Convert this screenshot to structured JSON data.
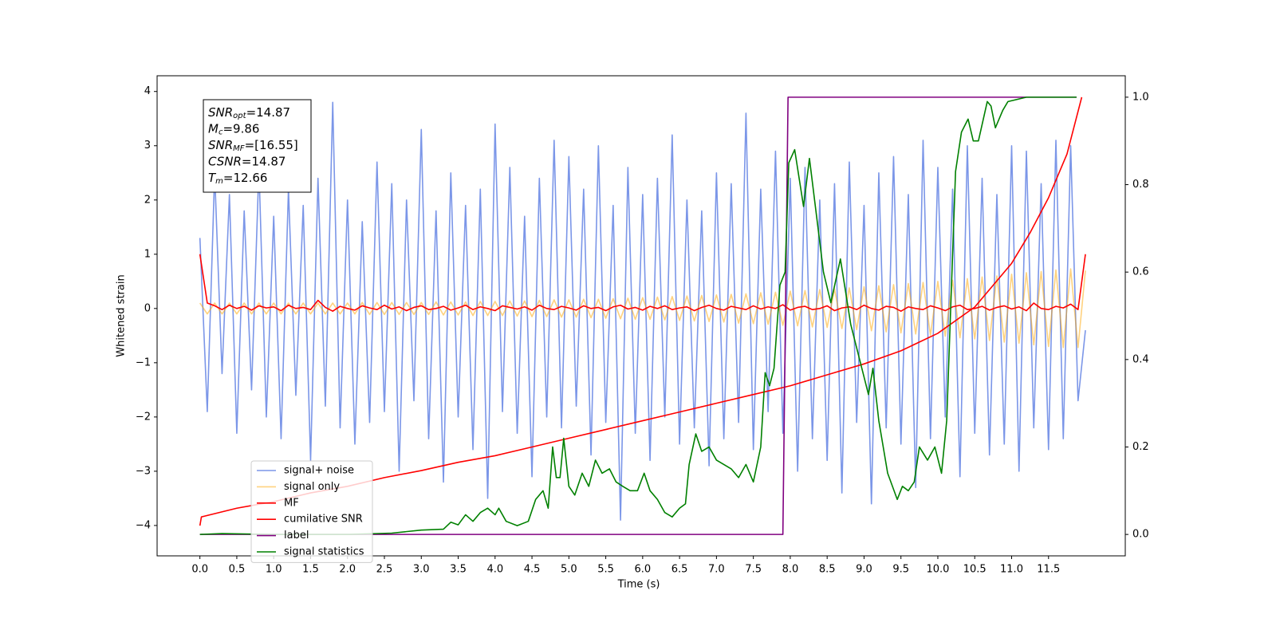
{
  "chart_data": {
    "type": "line",
    "xlabel": "Time (s)",
    "ylabel": "Whitened strain",
    "xlim": [
      -0.58,
      12.54
    ],
    "ylim": [
      -4.56,
      4.29
    ],
    "y2lim": [
      -0.049,
      1.049
    ],
    "xticks": [
      {
        "value": 0,
        "label": "0.0"
      },
      0.5,
      {
        "value": 1,
        "label": "1.0"
      },
      1.5,
      {
        "value": 2,
        "label": "2.0"
      },
      2.5,
      {
        "value": 3,
        "label": "3.0"
      },
      3.5,
      {
        "value": 4,
        "label": "4.0"
      },
      4.5,
      {
        "value": 5,
        "label": "5.0"
      },
      5.5,
      {
        "value": 6,
        "label": "6.0"
      },
      6.5,
      {
        "value": 7,
        "label": "7.0"
      },
      7.5,
      {
        "value": 8,
        "label": "8.0"
      },
      8.5,
      {
        "value": 9,
        "label": "9.0"
      },
      9.5,
      {
        "value": 10,
        "label": "10.0"
      },
      10.5,
      {
        "value": 11,
        "label": "11.0"
      },
      11.5
    ],
    "yticks": [
      {
        "value": -4,
        "label": "−4"
      },
      {
        "value": -3,
        "label": "−3"
      },
      {
        "value": -2,
        "label": "−2"
      },
      {
        "value": -1,
        "label": "−1"
      },
      0,
      1,
      2,
      3,
      4
    ],
    "y2ticks": [
      {
        "value": 0,
        "label": "0.0"
      },
      0.2,
      0.4,
      0.6,
      0.8,
      {
        "value": 1,
        "label": "1.0"
      }
    ],
    "legend": "lower left",
    "annotation": [
      {
        "text": "SNR",
        "sub": "opt",
        "rest": "=14.87"
      },
      {
        "text": "M",
        "sub": "c",
        "rest": "=9.86"
      },
      {
        "text": "SNR",
        "sub": "MF",
        "rest": "=[16.55]"
      },
      {
        "text": "CSNR",
        "sub": "",
        "rest": "=14.87"
      },
      {
        "text": "T",
        "sub": "m",
        "rest": "=12.66"
      }
    ],
    "x": [
      0,
      0.1,
      0.2,
      0.3,
      0.4,
      0.5,
      0.6,
      0.7,
      0.8,
      0.9,
      1,
      1.1,
      1.2,
      1.3,
      1.4,
      1.5,
      1.6,
      1.7,
      1.8,
      1.9,
      2,
      2.1,
      2.2,
      2.3,
      2.4,
      2.5,
      2.6,
      2.7,
      2.8,
      2.9,
      3,
      3.1,
      3.2,
      3.3,
      3.4,
      3.5,
      3.6,
      3.7,
      3.8,
      3.9,
      4,
      4.1,
      4.2,
      4.3,
      4.4,
      4.5,
      4.6,
      4.7,
      4.8,
      4.9,
      5,
      5.1,
      5.2,
      5.3,
      5.4,
      5.5,
      5.6,
      5.7,
      5.8,
      5.9,
      6,
      6.1,
      6.2,
      6.3,
      6.4,
      6.5,
      6.6,
      6.7,
      6.8,
      6.9,
      7,
      7.1,
      7.2,
      7.3,
      7.4,
      7.5,
      7.6,
      7.7,
      7.8,
      7.9,
      8,
      8.1,
      8.2,
      8.3,
      8.4,
      8.5,
      8.6,
      8.7,
      8.8,
      8.9,
      9,
      9.1,
      9.2,
      9.3,
      9.4,
      9.5,
      9.6,
      9.7,
      9.8,
      9.9,
      10,
      10.1,
      10.2,
      10.3,
      10.4,
      10.5,
      10.6,
      10.7,
      10.8,
      10.9,
      11,
      11.1,
      11.2,
      11.3,
      11.4,
      11.5,
      11.6,
      11.7,
      11.8,
      11.9,
      12
    ],
    "series": [
      {
        "name": "signal+ noise",
        "color": "#7b96e8",
        "values": [
          1.3,
          -1.9,
          2.5,
          -1.2,
          2.1,
          -2.3,
          1.8,
          -1.5,
          2.6,
          -2.0,
          1.7,
          -2.4,
          2.2,
          -1.6,
          1.9,
          -2.8,
          2.4,
          -1.8,
          3.8,
          -2.2,
          2.0,
          -2.5,
          1.6,
          -2.1,
          2.7,
          -1.9,
          2.3,
          -3.0,
          2.0,
          -1.7,
          3.3,
          -2.4,
          1.8,
          -3.2,
          2.5,
          -2.0,
          1.9,
          -2.6,
          2.2,
          -3.5,
          3.4,
          -1.9,
          2.6,
          -2.3,
          1.7,
          -3.1,
          2.4,
          -2.0,
          3.1,
          -2.2,
          2.8,
          -1.8,
          2.2,
          -2.7,
          3.0,
          -2.1,
          1.9,
          -3.9,
          2.6,
          -2.3,
          2.1,
          -2.8,
          2.4,
          -2.0,
          3.2,
          -2.5,
          2.0,
          -2.2,
          1.8,
          -2.9,
          2.5,
          -2.4,
          2.3,
          -2.1,
          3.6,
          -2.6,
          2.2,
          -1.9,
          2.9,
          -2.3,
          2.4,
          -3.0,
          2.6,
          -2.4,
          2.0,
          -2.8,
          2.3,
          -3.4,
          2.7,
          -2.1,
          1.9,
          -3.6,
          2.5,
          -2.2,
          2.8,
          -2.5,
          2.1,
          -3.3,
          3.1,
          -2.4,
          2.6,
          -2.0,
          2.2,
          -3.1,
          3.0,
          -2.3,
          2.4,
          -2.7,
          2.1,
          -2.5,
          3.0,
          -3.0,
          2.9,
          -2.2,
          2.3,
          -2.6,
          3.1,
          -2.4,
          3.0,
          -1.7,
          -0.4
        ]
      },
      {
        "name": "signal only",
        "color": "#ffa500",
        "alpha": 0.5,
        "values": [
          0.1,
          -0.1,
          0.1,
          -0.1,
          0.1,
          -0.1,
          0.1,
          -0.1,
          0.1,
          -0.1,
          0.1,
          -0.1,
          0.1,
          -0.1,
          0.1,
          -0.1,
          0.1,
          -0.1,
          0.1,
          -0.1,
          0.1,
          -0.1,
          0.11,
          -0.11,
          0.11,
          -0.11,
          0.11,
          -0.11,
          0.11,
          -0.11,
          0.11,
          -0.11,
          0.12,
          -0.12,
          0.12,
          -0.12,
          0.12,
          -0.13,
          0.13,
          -0.13,
          0.13,
          -0.13,
          0.14,
          -0.14,
          0.14,
          -0.15,
          0.15,
          -0.15,
          0.16,
          -0.16,
          0.16,
          -0.16,
          0.17,
          -0.17,
          0.17,
          -0.18,
          0.18,
          -0.19,
          0.19,
          -0.2,
          0.2,
          -0.2,
          0.21,
          -0.21,
          0.22,
          -0.22,
          0.23,
          -0.23,
          0.24,
          -0.24,
          0.25,
          -0.25,
          0.26,
          -0.27,
          0.27,
          -0.28,
          0.29,
          -0.29,
          0.3,
          -0.31,
          0.32,
          -0.32,
          0.33,
          -0.34,
          0.35,
          -0.35,
          0.36,
          -0.37,
          0.38,
          -0.39,
          0.4,
          -0.41,
          0.42,
          -0.43,
          0.44,
          -0.45,
          0.46,
          -0.47,
          0.48,
          -0.49,
          0.5,
          -0.51,
          0.52,
          -0.54,
          0.55,
          -0.56,
          0.58,
          -0.59,
          0.6,
          -0.62,
          0.63,
          -0.64,
          0.66,
          -0.67,
          0.68,
          -0.7,
          0.71,
          -0.72,
          0.73,
          -0.72,
          0.7
        ]
      },
      {
        "name": "MF",
        "color": "#ff0000",
        "values": [
          1.0,
          0.1,
          0.05,
          -0.02,
          0.06,
          0.0,
          0.04,
          -0.03,
          0.05,
          0.01,
          0.03,
          -0.04,
          0.06,
          0.0,
          0.02,
          -0.02,
          0.15,
          0.02,
          -0.05,
          0.04,
          0.0,
          -0.03,
          0.05,
          0.01,
          -0.02,
          0.06,
          -0.01,
          0.03,
          -0.04,
          0.02,
          0.05,
          -0.02,
          0.0,
          0.04,
          -0.03,
          0.01,
          0.06,
          -0.02,
          0.03,
          0.0,
          -0.04,
          0.05,
          0.02,
          -0.01,
          0.03,
          -0.03,
          0.06,
          0.0,
          -0.02,
          0.04,
          0.01,
          -0.03,
          0.05,
          0.0,
          0.02,
          -0.04,
          0.03,
          0.06,
          -0.01,
          0.02,
          -0.03,
          0.04,
          0.0,
          0.05,
          -0.02,
          0.01,
          0.03,
          -0.04,
          0.02,
          0.06,
          0.0,
          -0.03,
          0.04,
          0.01,
          -0.02,
          0.05,
          -0.01,
          0.03,
          0.0,
          0.07,
          -0.03,
          0.02,
          0.04,
          -0.02,
          0.0,
          0.05,
          -0.04,
          0.01,
          0.03,
          -0.02,
          0.06,
          0.0,
          -0.03,
          0.04,
          0.02,
          -0.05,
          0.03,
          0.0,
          -0.02,
          0.05,
          0.01,
          -0.04,
          0.03,
          0.06,
          -0.02,
          0.0,
          0.04,
          -0.03,
          0.02,
          0.05,
          -0.01,
          0.03,
          -0.04,
          0.1,
          0.0,
          -0.02,
          0.04,
          0.01,
          0.08,
          -0.02,
          1.0
        ]
      },
      {
        "name": "cumilative SNR",
        "color": "#ff0000",
        "axis": "y2",
        "x": [
          0,
          0.02,
          0.5,
          1,
          1.5,
          2,
          2.5,
          3,
          3.5,
          4,
          4.5,
          5,
          5.5,
          6,
          6.5,
          7,
          7.5,
          8,
          8.5,
          9,
          9.5,
          10,
          10.5,
          11,
          11.25,
          11.5,
          11.75,
          11.95
        ],
        "values": [
          0.02,
          0.04,
          0.06,
          0.075,
          0.095,
          0.11,
          0.13,
          0.146,
          0.165,
          0.18,
          0.2,
          0.22,
          0.24,
          0.26,
          0.28,
          0.3,
          0.32,
          0.34,
          0.365,
          0.39,
          0.42,
          0.46,
          0.52,
          0.62,
          0.69,
          0.77,
          0.87,
          1.0
        ]
      },
      {
        "name": "label",
        "color": "#800080",
        "axis": "y2",
        "x": [
          0,
          7.9,
          7.97,
          11.88
        ],
        "values": [
          0,
          0,
          1,
          1
        ]
      },
      {
        "name": "signal statistics",
        "color": "#008000",
        "axis": "y2",
        "x": [
          0,
          0.3,
          1.0,
          2.0,
          2.6,
          3.0,
          3.3,
          3.4,
          3.5,
          3.6,
          3.7,
          3.8,
          3.9,
          4.0,
          4.05,
          4.15,
          4.3,
          4.45,
          4.55,
          4.65,
          4.72,
          4.78,
          4.83,
          4.88,
          4.93,
          5.0,
          5.08,
          5.18,
          5.27,
          5.36,
          5.45,
          5.55,
          5.64,
          5.73,
          5.83,
          5.93,
          6.02,
          6.1,
          6.2,
          6.3,
          6.4,
          6.5,
          6.58,
          6.63,
          6.72,
          6.8,
          6.9,
          7.0,
          7.1,
          7.2,
          7.3,
          7.4,
          7.5,
          7.6,
          7.66,
          7.72,
          7.78,
          7.86,
          7.93,
          7.98,
          8.06,
          8.18,
          8.26,
          8.45,
          8.55,
          8.68,
          8.82,
          8.94,
          9.06,
          9.12,
          9.2,
          9.32,
          9.45,
          9.52,
          9.6,
          9.68,
          9.75,
          9.86,
          9.96,
          10.05,
          10.12,
          10.24,
          10.32,
          10.41,
          10.48,
          10.55,
          10.67,
          10.72,
          10.78,
          10.88,
          10.95,
          11.2,
          11.88
        ],
        "values": [
          0,
          0.002,
          0,
          0,
          0.003,
          0.01,
          0.012,
          0.028,
          0.022,
          0.045,
          0.03,
          0.05,
          0.06,
          0.045,
          0.06,
          0.03,
          0.02,
          0.03,
          0.08,
          0.1,
          0.06,
          0.2,
          0.13,
          0.13,
          0.22,
          0.11,
          0.09,
          0.14,
          0.11,
          0.17,
          0.14,
          0.15,
          0.12,
          0.11,
          0.1,
          0.1,
          0.14,
          0.1,
          0.08,
          0.05,
          0.04,
          0.06,
          0.07,
          0.16,
          0.23,
          0.19,
          0.2,
          0.17,
          0.16,
          0.15,
          0.13,
          0.16,
          0.12,
          0.2,
          0.37,
          0.34,
          0.38,
          0.57,
          0.6,
          0.85,
          0.88,
          0.75,
          0.86,
          0.6,
          0.53,
          0.63,
          0.48,
          0.4,
          0.32,
          0.38,
          0.26,
          0.14,
          0.08,
          0.11,
          0.1,
          0.12,
          0.2,
          0.17,
          0.2,
          0.14,
          0.26,
          0.83,
          0.92,
          0.95,
          0.9,
          0.9,
          0.99,
          0.98,
          0.93,
          0.97,
          0.99,
          1.0,
          1.0
        ]
      }
    ]
  }
}
